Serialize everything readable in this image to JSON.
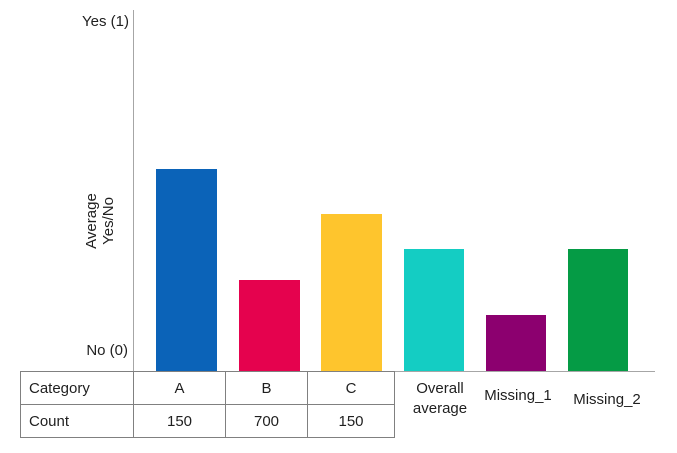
{
  "chart_data": {
    "type": "bar",
    "title": "",
    "ylabel": "Average Yes/No",
    "ylabel_lines": [
      "Average",
      "Yes/No"
    ],
    "y_axis_top_tick_label": "Yes (1)",
    "y_axis_bottom_tick_label": "No (0)",
    "ylim": [
      0,
      1
    ],
    "grid": false,
    "legend": false,
    "categories": [
      "A",
      "B",
      "C",
      "Overall average",
      "Missing_1",
      "Missing_2"
    ],
    "values": [
      0.58,
      0.26,
      0.45,
      0.35,
      0.16,
      0.35
    ],
    "bar_colors": [
      "#0b63b8",
      "#e5024e",
      "#fec52d",
      "#14cdc3",
      "#8c006f",
      "#059b45"
    ],
    "axis_color": "#a6a6a6",
    "table_border_color": "#808080"
  },
  "table": {
    "rows": [
      {
        "header": "Category",
        "cells": [
          "A",
          "B",
          "C"
        ]
      },
      {
        "header": "Count",
        "cells": [
          "150",
          "700",
          "150"
        ]
      }
    ]
  }
}
